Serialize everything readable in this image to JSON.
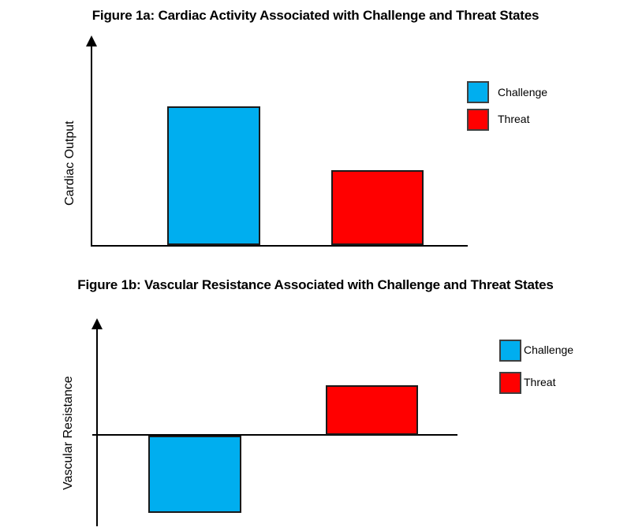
{
  "page": {
    "background": "#ffffff"
  },
  "style": {
    "bar_border": "#1a1a1a",
    "axis_color": "#000000",
    "legend_swatch_border": "#3f3f3f",
    "text_color": "#000000"
  },
  "chart_data": [
    {
      "id": "figure-1a",
      "type": "bar",
      "title": "Figure 1a: Cardiac Activity Associated with Challenge and Threat States",
      "xlabel": "",
      "ylabel": "Cardiac Output",
      "categories": [
        "Challenge",
        "Threat"
      ],
      "values": [
        1.85,
        1.0
      ],
      "value_units": "relative magnitude (axes show no numeric scale)",
      "ylim": [
        0,
        2.6
      ],
      "grid": false,
      "axis_tick_labels": false,
      "legend_position": "right",
      "legend": [
        {
          "label": "Challenge",
          "color": "#00aeef"
        },
        {
          "label": "Threat",
          "color": "#ff0000"
        }
      ]
    },
    {
      "id": "figure-1b",
      "type": "bar",
      "title": "Figure 1b: Vascular Resistance Associated with Challenge and Threat States",
      "xlabel": "",
      "ylabel": "Vascular Resistance",
      "categories": [
        "Challenge",
        "Threat"
      ],
      "values": [
        -1.55,
        1.0
      ],
      "value_units": "relative magnitude (axes show no numeric scale)",
      "ylim": [
        -2.3,
        2.3
      ],
      "grid": false,
      "axis_tick_labels": false,
      "legend_position": "right",
      "legend": [
        {
          "label": "Challenge",
          "color": "#00aeef"
        },
        {
          "label": "Threat",
          "color": "#ff0000"
        }
      ]
    }
  ]
}
